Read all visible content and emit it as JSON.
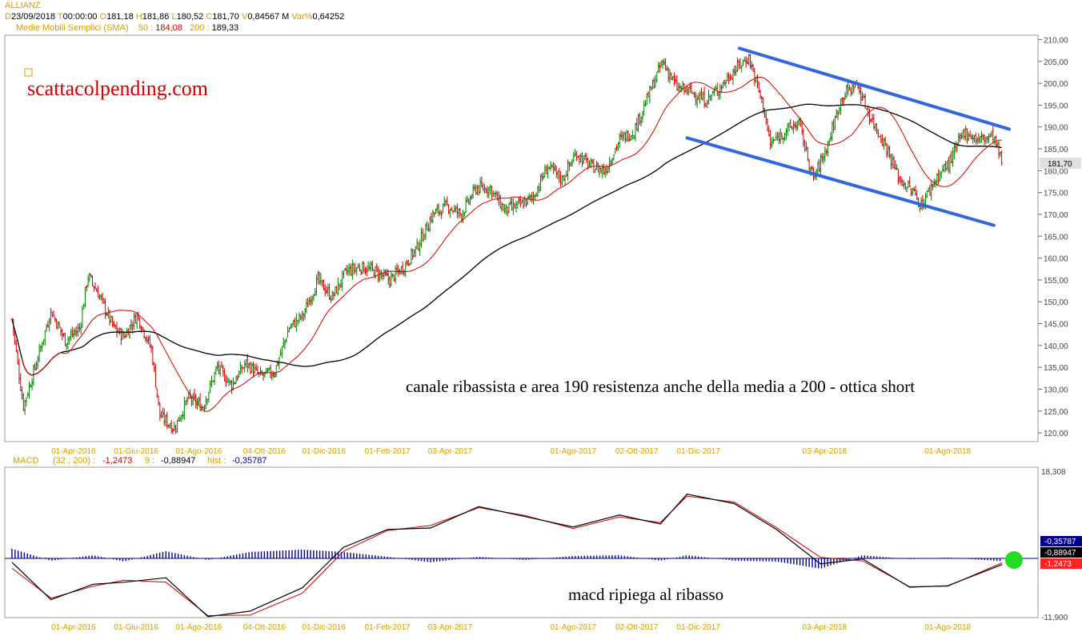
{
  "header": {
    "symbol": "ALLIANZ",
    "date_label": "D",
    "date": "23/09/2018",
    "time_label": "T",
    "time": "00:00:00",
    "open_label": "O",
    "open": "181,18",
    "high_label": "H",
    "high": "181,86",
    "low_label": "L",
    "low": "180,52",
    "close_label": "C",
    "close": "181,70",
    "volume_label": "V",
    "volume": "0,84567 M",
    "var_label": "Var%",
    "var": "0,64252"
  },
  "sma_legend": {
    "label": "Medie Mobili Semplici (SMA)",
    "p50_label": "50 :",
    "p50_value": "184,08",
    "p200_label": "200 :",
    "p200_value": "189,33"
  },
  "watermark": "scattacolpending.com",
  "annotations": {
    "price": "canale ribassista e area 190 resistenza anche della media a 200 - ottica short",
    "macd": "macd ripiega al ribasso"
  },
  "macd_legend": {
    "label": "MACD",
    "params": "(32 , 200) :",
    "macd_value": "-1,2473",
    "signal_label": "9 :",
    "signal_value": "-0,88947",
    "hist_label": "hist :",
    "hist_value": "-0,35787"
  },
  "colors": {
    "candle_up": "#008000",
    "candle_down": "#cc0000",
    "sma50": "#cc0000",
    "sma200": "#000000",
    "channel": "#3366dd",
    "macd_line": "#000000",
    "signal_line": "#cc0000",
    "histogram": "#00008b",
    "axis_date": "#d4a000",
    "watermark": "#cc0000",
    "marker": "#22dd22"
  },
  "chart_data": [
    {
      "type": "candlestick",
      "title": "ALLIANZ",
      "y_ticks": [
        "210,00",
        "205,00",
        "200,00",
        "195,00",
        "190,00",
        "185,00",
        "180,00",
        "175,00",
        "170,00",
        "165,00",
        "160,00",
        "155,00",
        "150,00",
        "145,00",
        "140,00",
        "135,00",
        "130,00",
        "125,00",
        "120,00"
      ],
      "ylim": [
        118,
        211
      ],
      "last_price_label": "181,70",
      "x_ticks": [
        "01-Apr-2016",
        "01-Giu-2016",
        "01-Ago-2016",
        "04-Ott-2016",
        "01-Dic-2016",
        "01-Feb-2017",
        "03-Apr-2017",
        "01-Ago-2017",
        "02-Ott-2017",
        "01-Dic-2017",
        "03-Apr-2018",
        "01-Ago-2018"
      ],
      "close_path": [
        [
          "2016-02-01",
          146
        ],
        [
          "2016-02-12",
          126
        ],
        [
          "2016-02-26",
          137
        ],
        [
          "2016-03-10",
          148
        ],
        [
          "2016-03-24",
          141
        ],
        [
          "2016-04-07",
          144
        ],
        [
          "2016-04-15",
          156
        ],
        [
          "2016-04-25",
          152
        ],
        [
          "2016-05-10",
          144
        ],
        [
          "2016-05-20",
          142
        ],
        [
          "2016-06-02",
          147
        ],
        [
          "2016-06-16",
          139
        ],
        [
          "2016-06-24",
          124
        ],
        [
          "2016-07-08",
          121
        ],
        [
          "2016-07-22",
          128
        ],
        [
          "2016-08-05",
          126
        ],
        [
          "2016-08-19",
          135
        ],
        [
          "2016-09-02",
          131
        ],
        [
          "2016-09-16",
          136
        ],
        [
          "2016-09-30",
          133
        ],
        [
          "2016-10-14",
          134
        ],
        [
          "2016-10-28",
          144
        ],
        [
          "2016-11-11",
          147
        ],
        [
          "2016-11-25",
          155
        ],
        [
          "2016-12-09",
          151
        ],
        [
          "2016-12-23",
          157
        ],
        [
          "2017-01-06",
          158
        ],
        [
          "2017-01-20",
          157
        ],
        [
          "2017-02-03",
          155
        ],
        [
          "2017-02-17",
          158
        ],
        [
          "2017-03-03",
          163
        ],
        [
          "2017-03-17",
          170
        ],
        [
          "2017-03-31",
          172
        ],
        [
          "2017-04-14",
          170
        ],
        [
          "2017-04-28",
          176
        ],
        [
          "2017-05-12",
          176
        ],
        [
          "2017-05-26",
          171
        ],
        [
          "2017-06-09",
          172
        ],
        [
          "2017-06-23",
          174
        ],
        [
          "2017-07-07",
          181
        ],
        [
          "2017-07-21",
          178
        ],
        [
          "2017-08-04",
          184
        ],
        [
          "2017-08-18",
          181
        ],
        [
          "2017-09-01",
          180
        ],
        [
          "2017-09-15",
          187
        ],
        [
          "2017-09-29",
          189
        ],
        [
          "2017-10-13",
          197
        ],
        [
          "2017-10-27",
          205
        ],
        [
          "2017-11-10",
          199
        ],
        [
          "2017-11-24",
          198
        ],
        [
          "2017-12-08",
          196
        ],
        [
          "2017-12-22",
          199
        ],
        [
          "2018-01-05",
          203
        ],
        [
          "2018-01-19",
          206
        ],
        [
          "2018-02-02",
          195
        ],
        [
          "2018-02-09",
          186
        ],
        [
          "2018-02-23",
          189
        ],
        [
          "2018-03-09",
          191
        ],
        [
          "2018-03-23",
          178
        ],
        [
          "2018-04-06",
          186
        ],
        [
          "2018-04-20",
          197
        ],
        [
          "2018-05-04",
          200
        ],
        [
          "2018-05-18",
          192
        ],
        [
          "2018-06-01",
          186
        ],
        [
          "2018-06-15",
          178
        ],
        [
          "2018-06-29",
          175
        ],
        [
          "2018-07-06",
          172
        ],
        [
          "2018-07-20",
          178
        ],
        [
          "2018-08-03",
          182
        ],
        [
          "2018-08-17",
          189
        ],
        [
          "2018-08-31",
          187
        ],
        [
          "2018-09-14",
          188
        ],
        [
          "2018-09-23",
          181.7
        ]
      ],
      "series": [
        {
          "name": "Medie Mobili Semplici (SMA) 50",
          "last": 184.08
        },
        {
          "name": "Medie Mobili Semplici (SMA) 200",
          "last": 189.33
        }
      ],
      "channel": {
        "upper": [
          [
            "2018-01-10",
            208
          ],
          [
            "2018-09-30",
            189.5
          ]
        ],
        "lower": [
          [
            "2017-11-20",
            187.5
          ],
          [
            "2018-09-15",
            167.5
          ]
        ]
      }
    },
    {
      "type": "line",
      "title": "MACD",
      "y_ticks": [
        "18,308",
        "-11,900"
      ],
      "ylim": [
        -11.9,
        18.308
      ],
      "last_labels": [
        "-0,35787",
        "-0,88947",
        "-1,2473"
      ],
      "series": [
        {
          "name": "MACD (32 , 200)",
          "x": [
            "2016-02-01",
            "2016-03-10",
            "2016-04-20",
            "2016-05-20",
            "2016-06-30",
            "2016-08-10",
            "2016-09-20",
            "2016-11-10",
            "2016-12-20",
            "2017-02-01",
            "2017-03-15",
            "2017-05-01",
            "2017-06-15",
            "2017-08-01",
            "2017-09-15",
            "2017-10-25",
            "2017-11-20",
            "2018-01-05",
            "2018-02-15",
            "2018-03-30",
            "2018-05-10",
            "2018-06-25",
            "2018-08-01",
            "2018-09-23"
          ],
          "values": [
            -0.8,
            -8.3,
            -5.2,
            -4.8,
            -3.9,
            -11.7,
            -10.6,
            -5.9,
            2.2,
            5.8,
            6.1,
            10.4,
            8.4,
            6.3,
            8.7,
            6.9,
            12.9,
            11.0,
            5.8,
            -1.1,
            -0.1,
            -5.8,
            -5.5,
            -1.25
          ]
        },
        {
          "name": "9",
          "x": [
            "2016-02-01",
            "2016-03-10",
            "2016-04-20",
            "2016-05-20",
            "2016-06-30",
            "2016-08-10",
            "2016-09-20",
            "2016-11-10",
            "2016-12-20",
            "2017-02-01",
            "2017-03-15",
            "2017-05-01",
            "2017-06-15",
            "2017-08-01",
            "2017-09-15",
            "2017-10-25",
            "2017-11-20",
            "2018-01-05",
            "2018-02-15",
            "2018-03-30",
            "2018-05-10",
            "2018-06-25",
            "2018-08-01",
            "2018-09-23"
          ],
          "values": [
            -2.0,
            -8.0,
            -5.6,
            -4.4,
            -4.8,
            -11.5,
            -11.4,
            -7.0,
            1.4,
            5.6,
            6.6,
            10.2,
            8.6,
            6.0,
            8.3,
            7.2,
            12.5,
            11.3,
            6.2,
            0.2,
            -0.5,
            -5.7,
            -5.6,
            -0.89
          ]
        }
      ],
      "histogram_last": -0.35787
    }
  ]
}
